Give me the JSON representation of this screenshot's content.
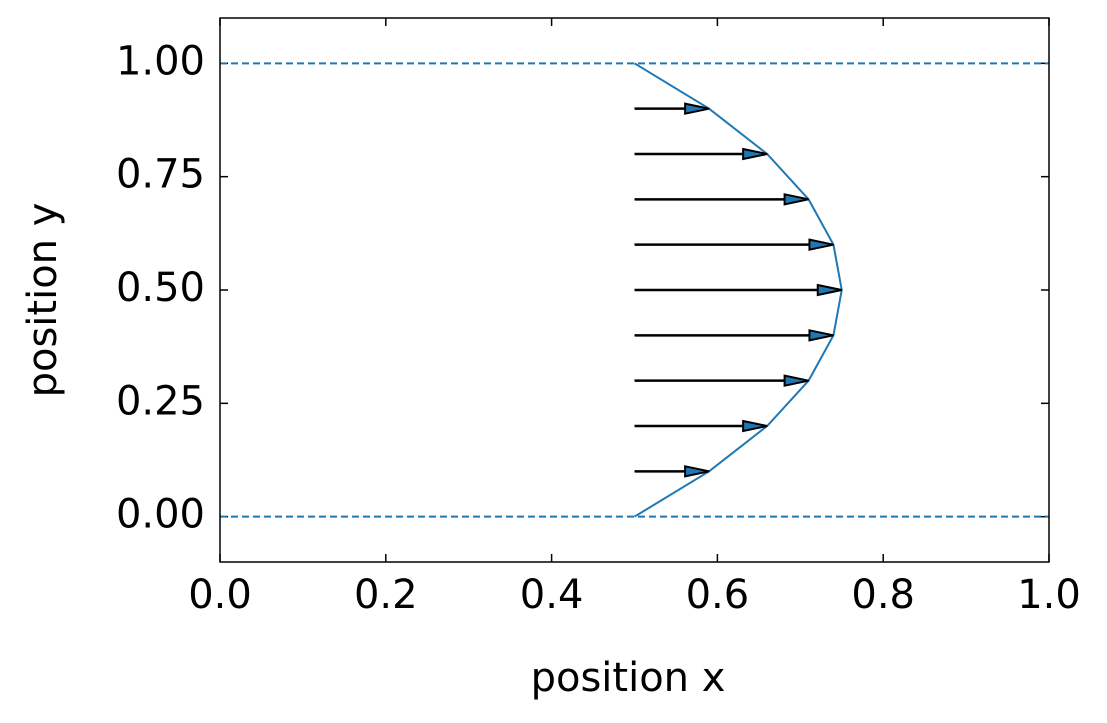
{
  "chart_data": {
    "type": "quiver",
    "xlabel": "position x",
    "ylabel": "position y",
    "xlim": [
      0,
      1
    ],
    "ylim": [
      -0.1,
      1.1
    ],
    "xticks": [
      {
        "value": 0,
        "label": "0.0"
      },
      0.2,
      0.4,
      0.6,
      0.8,
      {
        "value": 1,
        "label": "1.0"
      }
    ],
    "yticks": [
      {
        "value": 0,
        "label": "0.00"
      },
      0.25,
      {
        "value": 0.5,
        "label": "0.50"
      },
      0.75,
      {
        "value": 1,
        "label": "1.00"
      }
    ],
    "tick_direction": "in",
    "walls": {
      "values": [
        0,
        1
      ],
      "color": "#1f77b4",
      "style": "dashed"
    },
    "profile": {
      "color": "#1f77b4",
      "x": [
        0.5,
        0.59,
        0.66,
        0.71,
        0.74,
        0.75,
        0.74,
        0.71,
        0.66,
        0.59,
        0.5
      ],
      "y": [
        0,
        0.1,
        0.2,
        0.3,
        0.4,
        0.5,
        0.6,
        0.7,
        0.8,
        0.9,
        1
      ]
    },
    "arrows": {
      "color": "#1f77b4",
      "x": [
        0.5,
        0.5,
        0.5,
        0.5,
        0.5,
        0.5,
        0.5,
        0.5,
        0.5
      ],
      "y": [
        0.1,
        0.2,
        0.3,
        0.4,
        0.5,
        0.6,
        0.7,
        0.8,
        0.9
      ],
      "u": [
        0.09,
        0.16,
        0.21,
        0.24,
        0.25,
        0.24,
        0.21,
        0.16,
        0.09
      ]
    }
  }
}
